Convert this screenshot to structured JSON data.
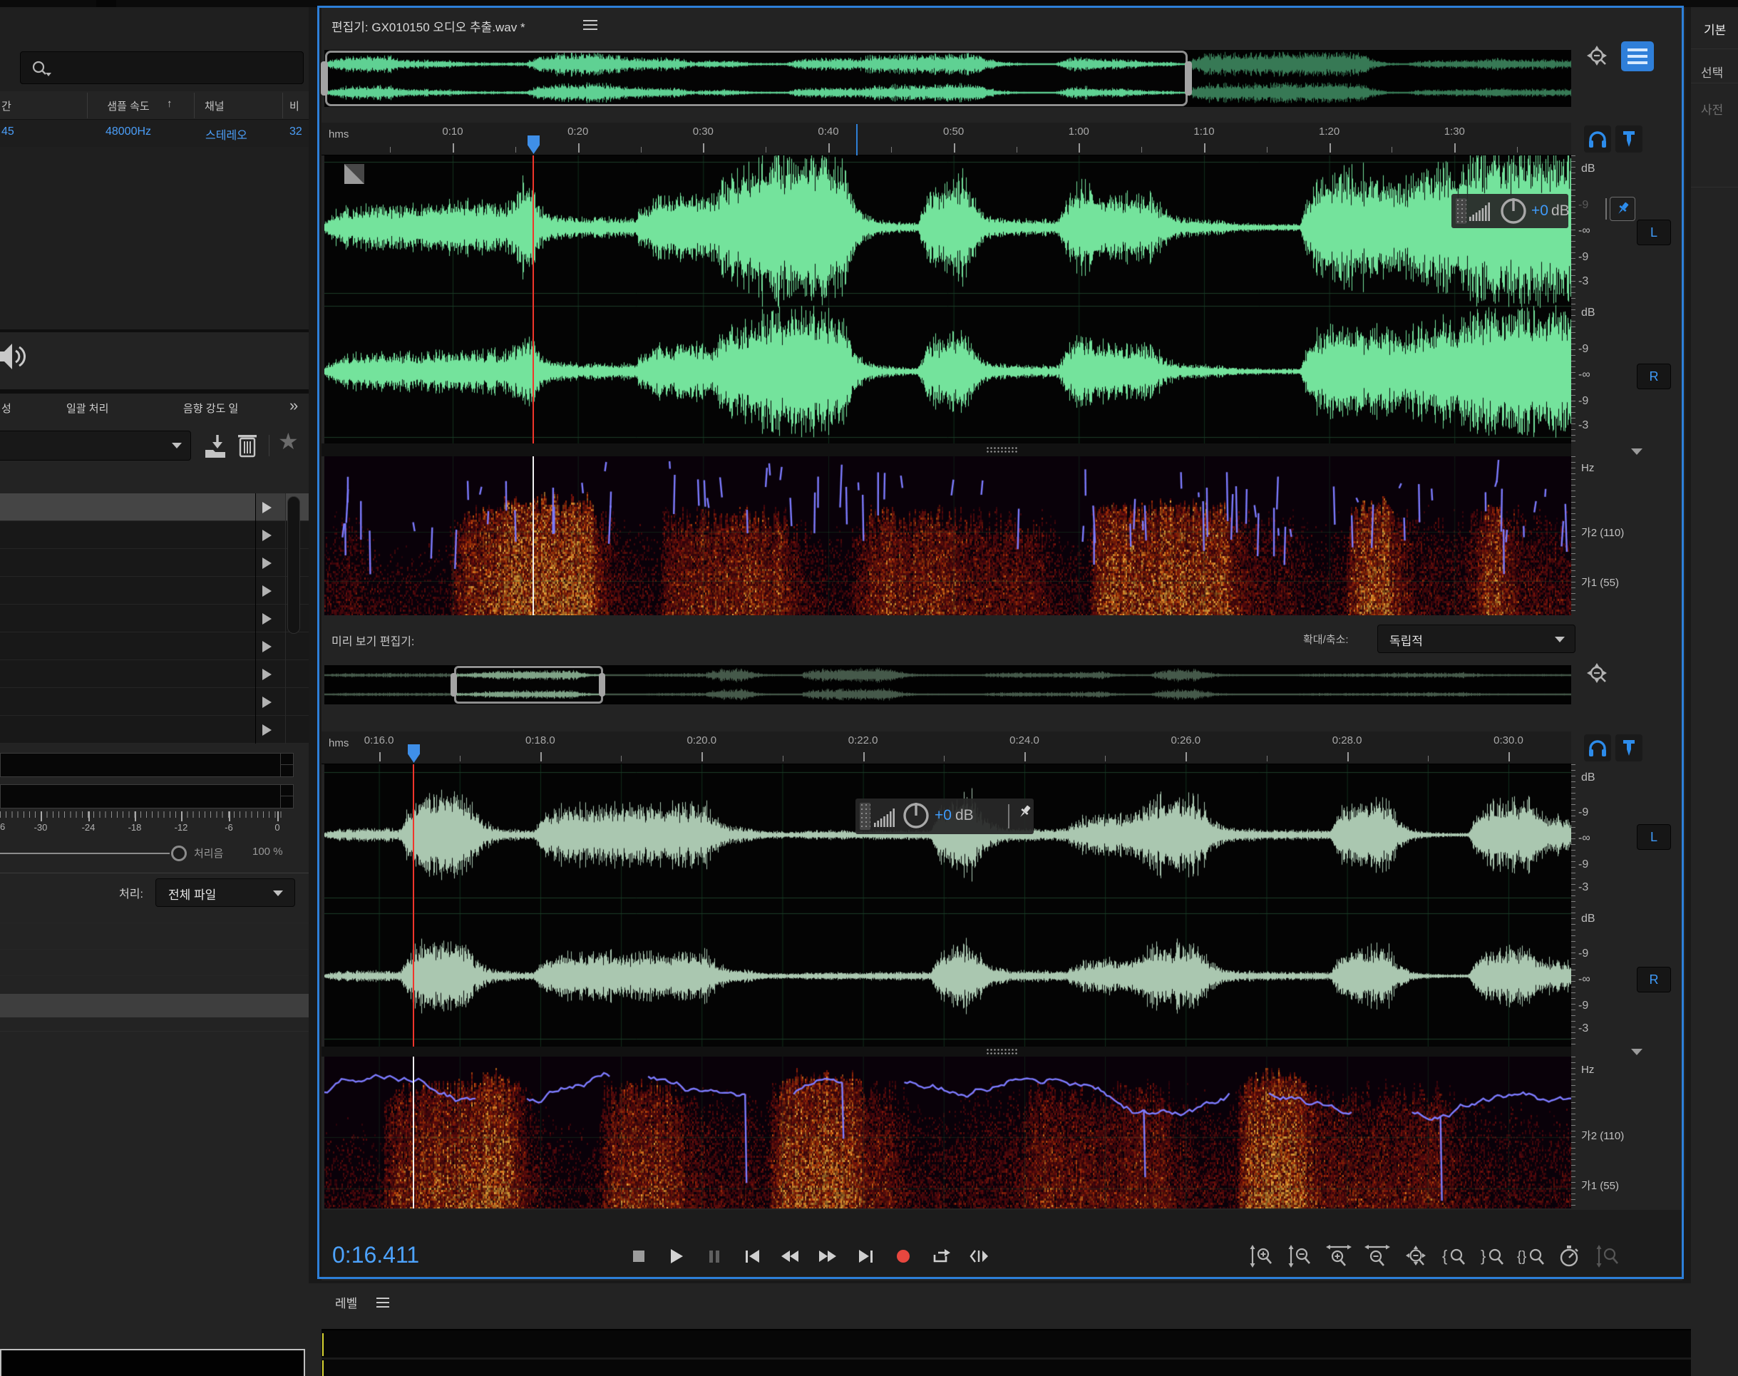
{
  "icons": {
    "star": "★",
    "sort_arrow": "↑",
    "overflow": "»"
  },
  "colors": {
    "accent_blue": "#2d8ceb",
    "wave_green": "#74e39c",
    "preview_green": "#a9c9b2",
    "record_red": "#e8473f",
    "time_blue": "#4da3ff",
    "level_yellow": "#d8d432",
    "playhead_red": "#f0352b"
  },
  "left": {
    "search": {
      "placeholder": ""
    },
    "files": {
      "col_duration": "간",
      "col_sample_rate": "샘플 속도",
      "col_channels": "채널",
      "col_bit_depth": "비",
      "row": {
        "duration": "45",
        "sample_rate": "48000Hz",
        "channels": "스테레오",
        "bit_depth": "32"
      }
    },
    "tabs": {
      "partial": "성",
      "batch": "일괄 처리",
      "loudness": "음향 강도 일",
      "overflow": "»"
    },
    "meter_scale": {
      "partial": "6",
      "labels": [
        "-30",
        "-24",
        "-18",
        "-12",
        "-6",
        "0"
      ]
    },
    "mix": {
      "label": "처리음",
      "value": "100 %"
    },
    "process": {
      "label": "처리:",
      "value": "전체 파일"
    }
  },
  "editor": {
    "title": "편집기: GX010150 오디오 추출.wav *",
    "ruler": {
      "unit": "hms",
      "labels": [
        "0:10",
        "0:20",
        "0:30",
        "0:40",
        "0:50",
        "1:00",
        "1:10",
        "1:20",
        "1:30"
      ]
    },
    "scale": {
      "unit": "dB",
      "lane_labels": [
        "-9",
        "-∞",
        "-9",
        "-3"
      ],
      "left": "L",
      "right": "R"
    },
    "spect": {
      "unit": "Hz",
      "mid": "가2 (110)",
      "low": "가1 (55)"
    },
    "hud": {
      "gain": "+0",
      "unit": "dB"
    }
  },
  "preview": {
    "label": "미리 보기 편집기:",
    "zoom_label": "확대/축소:",
    "zoom_value": "독립적",
    "ruler": {
      "unit": "hms",
      "labels": [
        "0:16.0",
        "0:18.0",
        "0:20.0",
        "0:22.0",
        "0:24.0",
        "0:26.0",
        "0:28.0",
        "0:30.0"
      ]
    },
    "scale": {
      "unit": "dB",
      "lane_labels": [
        "-9",
        "-∞",
        "-9",
        "-3"
      ],
      "left": "L",
      "right": "R"
    },
    "spect": {
      "unit": "Hz",
      "mid": "가2 (110)",
      "low": "가1 (55)"
    },
    "hud": {
      "gain": "+0",
      "unit": "dB"
    }
  },
  "transport": {
    "time": "0:16.411"
  },
  "levels": {
    "title": "레벨"
  },
  "right_rail": {
    "sections": [
      "기본",
      "선택",
      "사전"
    ]
  }
}
